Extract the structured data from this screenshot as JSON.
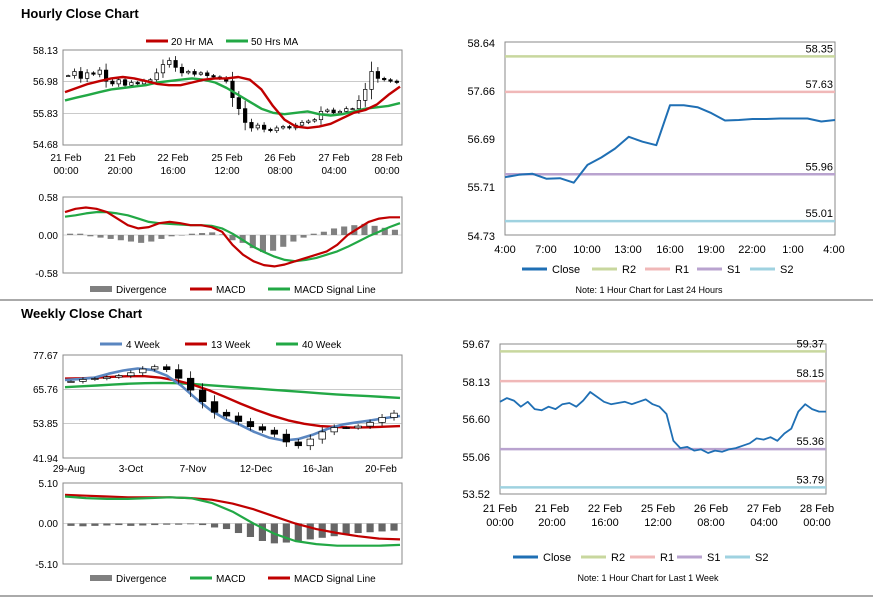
{
  "sections": {
    "hourly_title": "Hourly Close Chart",
    "weekly_title": "Weekly Close Chart"
  },
  "colors": {
    "close": "#1f6fb4",
    "ma_fast": "#c00000",
    "ma_slow": "#22a845",
    "candle": "#000000",
    "divergence": "#808080",
    "r2": "#c8d79e",
    "r1": "#f0b8b8",
    "s1": "#b9a3cf",
    "s2": "#9fd2e0",
    "frame": "#888888",
    "grid": "#aaaaaa"
  },
  "chart_data": [
    {
      "id": "hourly_price",
      "type": "candlestick",
      "title": "",
      "legend": [
        "20 Hr MA",
        "50 Hrs MA"
      ],
      "ylim": [
        54.68,
        58.13
      ],
      "y_ticks": [
        "58.13",
        "56.98",
        "55.83",
        "54.68"
      ],
      "x_ticks": [
        [
          "21 Feb",
          "00:00"
        ],
        [
          "21 Feb",
          "20:00"
        ],
        [
          "22 Feb",
          "16:00"
        ],
        [
          "25 Feb",
          "12:00"
        ],
        [
          "26 Feb",
          "08:00"
        ],
        [
          "27 Feb",
          "04:00"
        ],
        [
          "28 Feb",
          "00:00"
        ]
      ],
      "close": [
        57.2,
        57.35,
        57.1,
        57.3,
        57.25,
        57.4,
        57.0,
        56.9,
        57.05,
        56.85,
        56.95,
        56.9,
        57.0,
        57.05,
        57.3,
        57.6,
        57.75,
        57.5,
        57.3,
        57.35,
        57.25,
        57.3,
        57.2,
        57.15,
        57.1,
        57.0,
        56.4,
        56.0,
        55.5,
        55.3,
        55.4,
        55.25,
        55.2,
        55.3,
        55.35,
        55.3,
        55.4,
        55.5,
        55.55,
        55.6,
        55.9,
        55.95,
        55.85,
        55.9,
        56.0,
        56.0,
        56.3,
        56.7,
        57.35,
        57.1,
        57.05,
        57.0,
        56.95
      ],
      "series": [
        {
          "name": "20 Hr MA",
          "values": [
            56.6,
            56.75,
            56.9,
            57.0,
            57.1,
            57.15,
            57.1,
            57.0,
            56.9,
            56.85,
            56.85,
            56.95,
            57.05,
            57.1,
            57.1,
            57.15,
            57.05,
            56.7,
            56.1,
            55.6,
            55.35,
            55.3,
            55.35,
            55.45,
            55.65,
            55.85,
            55.95,
            56.15,
            56.5,
            56.8
          ]
        },
        {
          "name": "50 Hrs MA",
          "values": [
            56.3,
            56.4,
            56.5,
            56.6,
            56.7,
            56.75,
            56.8,
            56.85,
            56.95,
            57.0,
            57.05,
            57.1,
            57.05,
            56.95,
            56.75,
            56.5,
            56.25,
            56.0,
            55.85,
            55.8,
            55.85,
            55.9,
            55.8,
            55.75,
            55.8,
            55.9,
            56.0,
            56.05,
            56.1,
            56.2
          ]
        }
      ]
    },
    {
      "id": "hourly_macd",
      "type": "bar+line",
      "legend": [
        "Divergence",
        "MACD",
        "MACD Signal Line"
      ],
      "ylim": [
        -0.58,
        0.58
      ],
      "y_ticks": [
        "0.58",
        "0.00",
        "-0.58"
      ],
      "series": [
        {
          "name": "MACD",
          "values": [
            0.35,
            0.4,
            0.42,
            0.4,
            0.35,
            0.25,
            0.15,
            0.1,
            0.12,
            0.18,
            0.2,
            0.18,
            0.15,
            0.15,
            0.12,
            0.05,
            -0.15,
            -0.3,
            -0.4,
            -0.46,
            -0.48,
            -0.45,
            -0.4,
            -0.35,
            -0.3,
            -0.25,
            -0.15,
            0.0,
            0.1,
            0.2,
            0.25,
            0.27,
            0.27
          ]
        },
        {
          "name": "MACD Signal Line",
          "values": [
            0.28,
            0.3,
            0.33,
            0.35,
            0.35,
            0.33,
            0.3,
            0.25,
            0.2,
            0.18,
            0.17,
            0.16,
            0.15,
            0.15,
            0.14,
            0.1,
            0.02,
            -0.08,
            -0.18,
            -0.26,
            -0.33,
            -0.38,
            -0.4,
            -0.38,
            -0.35,
            -0.3,
            -0.25,
            -0.18,
            -0.1,
            -0.02,
            0.05,
            0.12,
            0.18
          ]
        },
        {
          "name": "Divergence",
          "values": [
            0.02,
            0.02,
            -0.02,
            -0.04,
            -0.06,
            -0.08,
            -0.1,
            -0.12,
            -0.1,
            -0.06,
            -0.02,
            0.0,
            0.02,
            0.03,
            0.04,
            0.01,
            -0.08,
            -0.12,
            -0.2,
            -0.26,
            -0.24,
            -0.18,
            -0.1,
            -0.04,
            0.02,
            0.05,
            0.1,
            0.13,
            0.15,
            0.17,
            0.14,
            0.11,
            0.08
          ]
        }
      ]
    },
    {
      "id": "hourly_pivot",
      "type": "line",
      "note": "Note: 1 Hour Chart for Last 24 Hours",
      "legend": [
        "Close",
        "R2",
        "R1",
        "S1",
        "S2"
      ],
      "ylim": [
        54.73,
        58.64
      ],
      "y_ticks": [
        "58.64",
        "57.66",
        "56.69",
        "55.71",
        "54.73"
      ],
      "x_ticks": [
        "4:00",
        "7:00",
        "10:00",
        "13:00",
        "16:00",
        "19:00",
        "22:00",
        "1:00",
        "4:00"
      ],
      "levels": [
        {
          "name": "R2",
          "value": 58.35,
          "label": "58.35"
        },
        {
          "name": "R1",
          "value": 57.63,
          "label": "57.63"
        },
        {
          "name": "S1",
          "value": 55.96,
          "label": "55.96"
        },
        {
          "name": "S2",
          "value": 55.01,
          "label": "55.01"
        }
      ],
      "x": [
        0,
        1,
        2,
        3,
        4,
        5,
        6,
        7,
        8,
        9,
        10,
        11,
        12,
        13,
        14,
        15,
        16,
        17,
        18,
        19,
        20,
        21,
        22,
        23,
        24
      ],
      "close": [
        55.9,
        55.95,
        55.97,
        55.87,
        55.88,
        55.79,
        56.15,
        56.3,
        56.48,
        56.72,
        56.62,
        56.55,
        57.36,
        57.36,
        57.32,
        57.2,
        57.05,
        57.06,
        57.08,
        57.08,
        57.09,
        57.09,
        57.09,
        57.03,
        57.06
      ]
    },
    {
      "id": "weekly_price",
      "type": "candlestick",
      "legend": [
        "4 Week",
        "13 Week",
        "40 Week"
      ],
      "ylim": [
        41.94,
        77.67
      ],
      "y_ticks": [
        "77.67",
        "65.76",
        "53.85",
        "41.94"
      ],
      "x_ticks": [
        "29-Aug",
        "3-Oct",
        "7-Nov",
        "12-Dec",
        "16-Jan",
        "20-Feb"
      ],
      "close": [
        68.5,
        69.2,
        69.5,
        70.0,
        70.5,
        71.5,
        72.8,
        73.6,
        72.6,
        69.6,
        65.5,
        61.5,
        57.8,
        56.5,
        54.6,
        52.8,
        51.6,
        50.2,
        47.5,
        46.2,
        48.5,
        51.0,
        52.5,
        52.4,
        53.0,
        54.3,
        56.0,
        57.5
      ],
      "series": [
        {
          "name": "4 Week",
          "values": [
            69.0,
            69.3,
            69.8,
            71.2,
            72.3,
            73.0,
            72.5,
            70.5,
            67.0,
            62.5,
            58.5,
            55.5,
            53.5,
            51.0,
            49.0,
            48.0,
            48.5,
            50.0,
            52.0,
            53.5,
            54.3,
            55.0,
            55.8,
            56.5
          ]
        },
        {
          "name": "13 Week",
          "values": [
            69.5,
            69.6,
            69.8,
            70.1,
            70.3,
            70.3,
            69.8,
            68.8,
            67.4,
            65.5,
            63.2,
            60.8,
            58.6,
            56.6,
            55.0,
            53.8,
            53.0,
            52.7,
            52.5,
            52.6,
            52.8,
            53.0
          ]
        },
        {
          "name": "40 Week",
          "values": [
            66.5,
            66.8,
            67.1,
            67.4,
            67.7,
            67.9,
            68.0,
            67.9,
            67.6,
            67.2,
            66.8,
            66.4,
            66.0,
            65.6,
            65.2,
            64.8,
            64.4,
            64.0,
            63.7,
            63.4,
            63.1,
            62.8
          ]
        }
      ]
    },
    {
      "id": "weekly_macd",
      "type": "bar+line",
      "legend": [
        "Divergence",
        "MACD",
        "MACD Signal Line"
      ],
      "ylim": [
        -5.1,
        5.1
      ],
      "y_ticks": [
        "5.10",
        "0.00",
        "-5.10"
      ],
      "series": [
        {
          "name": "MACD",
          "values": [
            3.4,
            3.2,
            3.1,
            3.1,
            3.2,
            3.3,
            3.2,
            2.6,
            1.5,
            0.0,
            -1.3,
            -2.2,
            -2.6,
            -2.8,
            -2.8,
            -2.8,
            -2.7
          ]
        },
        {
          "name": "MACD Signal Line",
          "values": [
            3.6,
            3.5,
            3.4,
            3.3,
            3.3,
            3.3,
            3.2,
            3.0,
            2.5,
            1.8,
            0.9,
            0.0,
            -0.7,
            -1.2,
            -1.6,
            -1.9,
            -2.0
          ]
        },
        {
          "name": "Divergence",
          "values": [
            -0.3,
            -0.35,
            -0.3,
            -0.25,
            -0.2,
            -0.3,
            -0.25,
            -0.2,
            -0.15,
            -0.15,
            -0.1,
            -0.2,
            -0.5,
            -0.7,
            -1.2,
            -1.7,
            -2.2,
            -2.5,
            -2.4,
            -2.2,
            -2.0,
            -1.8,
            -1.6,
            -1.4,
            -1.2,
            -1.1,
            -1.0,
            -0.9
          ]
        }
      ]
    },
    {
      "id": "weekly_pivot",
      "type": "line",
      "note": "Note: 1 Hour Chart for Last 1 Week",
      "legend": [
        "Close",
        "R2",
        "R1",
        "S1",
        "S2"
      ],
      "ylim": [
        53.52,
        59.67
      ],
      "y_ticks": [
        "59.67",
        "58.13",
        "56.60",
        "55.06",
        "53.52"
      ],
      "x_ticks": [
        [
          "21 Feb",
          "00:00"
        ],
        [
          "21 Feb",
          "20:00"
        ],
        [
          "22 Feb",
          "16:00"
        ],
        [
          "25 Feb",
          "12:00"
        ],
        [
          "26 Feb",
          "08:00"
        ],
        [
          "27 Feb",
          "04:00"
        ],
        [
          "28 Feb",
          "00:00"
        ]
      ],
      "levels": [
        {
          "name": "R2",
          "value": 59.37,
          "label": "59.37"
        },
        {
          "name": "R1",
          "value": 58.15,
          "label": "58.15"
        },
        {
          "name": "S1",
          "value": 55.36,
          "label": "55.36"
        },
        {
          "name": "S2",
          "value": 53.79,
          "label": "53.79"
        }
      ],
      "close": [
        57.3,
        57.45,
        57.35,
        57.1,
        57.3,
        57.0,
        56.95,
        57.1,
        57.0,
        57.2,
        57.25,
        57.1,
        57.35,
        57.7,
        57.5,
        57.3,
        57.2,
        57.25,
        57.3,
        57.2,
        57.3,
        57.4,
        57.2,
        57.1,
        56.8,
        55.7,
        55.4,
        55.45,
        55.3,
        55.35,
        55.2,
        55.3,
        55.25,
        55.35,
        55.4,
        55.5,
        55.6,
        55.8,
        55.75,
        55.85,
        55.7,
        56.0,
        56.2,
        56.9,
        57.2,
        57.0,
        56.9,
        56.9
      ]
    }
  ]
}
